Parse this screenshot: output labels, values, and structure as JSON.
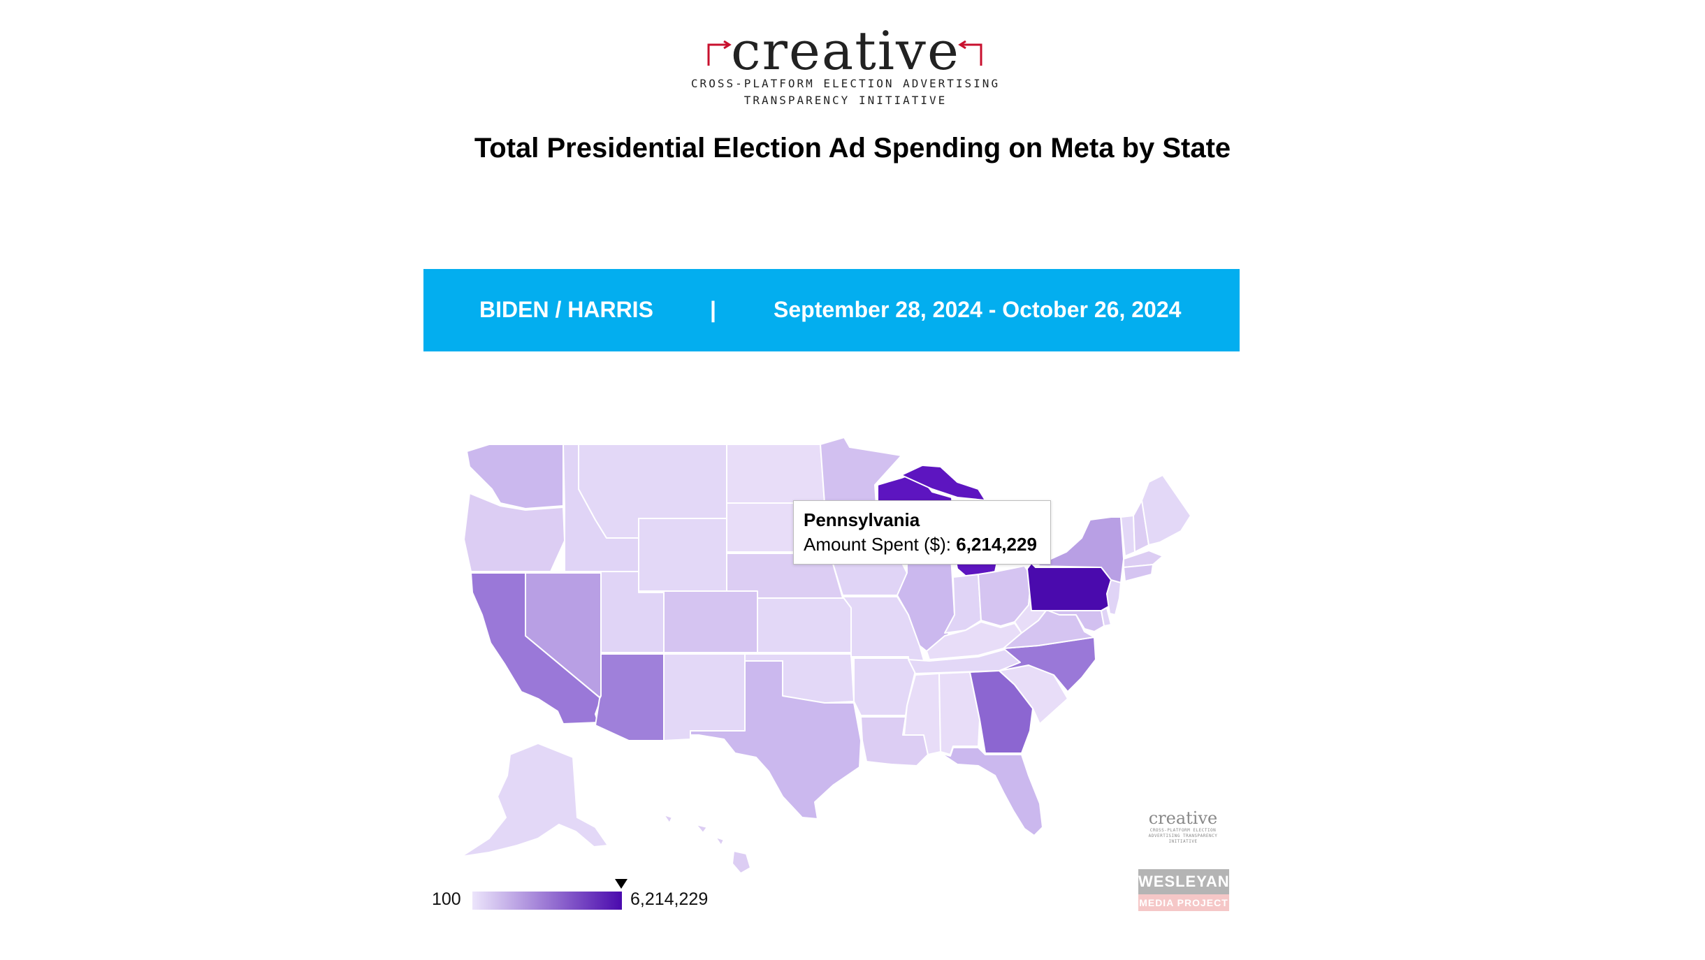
{
  "logo": {
    "word": "creative",
    "subtitle_line1": "CROSS-PLATFORM ELECTION ADVERTISING",
    "subtitle_line2": "TRANSPARENCY INITIATIVE"
  },
  "title": "Total Presidential Election Ad Spending on Meta by State",
  "banner": {
    "candidate": "BIDEN / HARRIS",
    "separator": "|",
    "date_range": "September 28, 2024 - October 26, 2024",
    "color": "#03aeef"
  },
  "tooltip": {
    "state": "Pennsylvania",
    "label": "Amount Spent ($):",
    "value": "6,214,229"
  },
  "legend": {
    "min_label": "100",
    "max_label": "6,214,229",
    "color_low": "#ece5fb",
    "color_high": "#4a0aad"
  },
  "watermarks": {
    "creative_word": "creative",
    "creative_sub": "CROSS-PLATFORM ELECTION ADVERTISING TRANSPARENCY INITIATIVE",
    "wesleyan_top": "WESLEYAN",
    "wesleyan_bottom": "MEDIA PROJECT"
  },
  "map_colors": {
    "darkest": "#4a0aad",
    "dark": "#5d15c0",
    "medium": "#9a78d8",
    "mid_light": "#b89fe4",
    "light": "#cbb8ee",
    "lighter": "#dccdf3",
    "lightest": "#e8ddf8",
    "border": "#ffffff"
  }
}
